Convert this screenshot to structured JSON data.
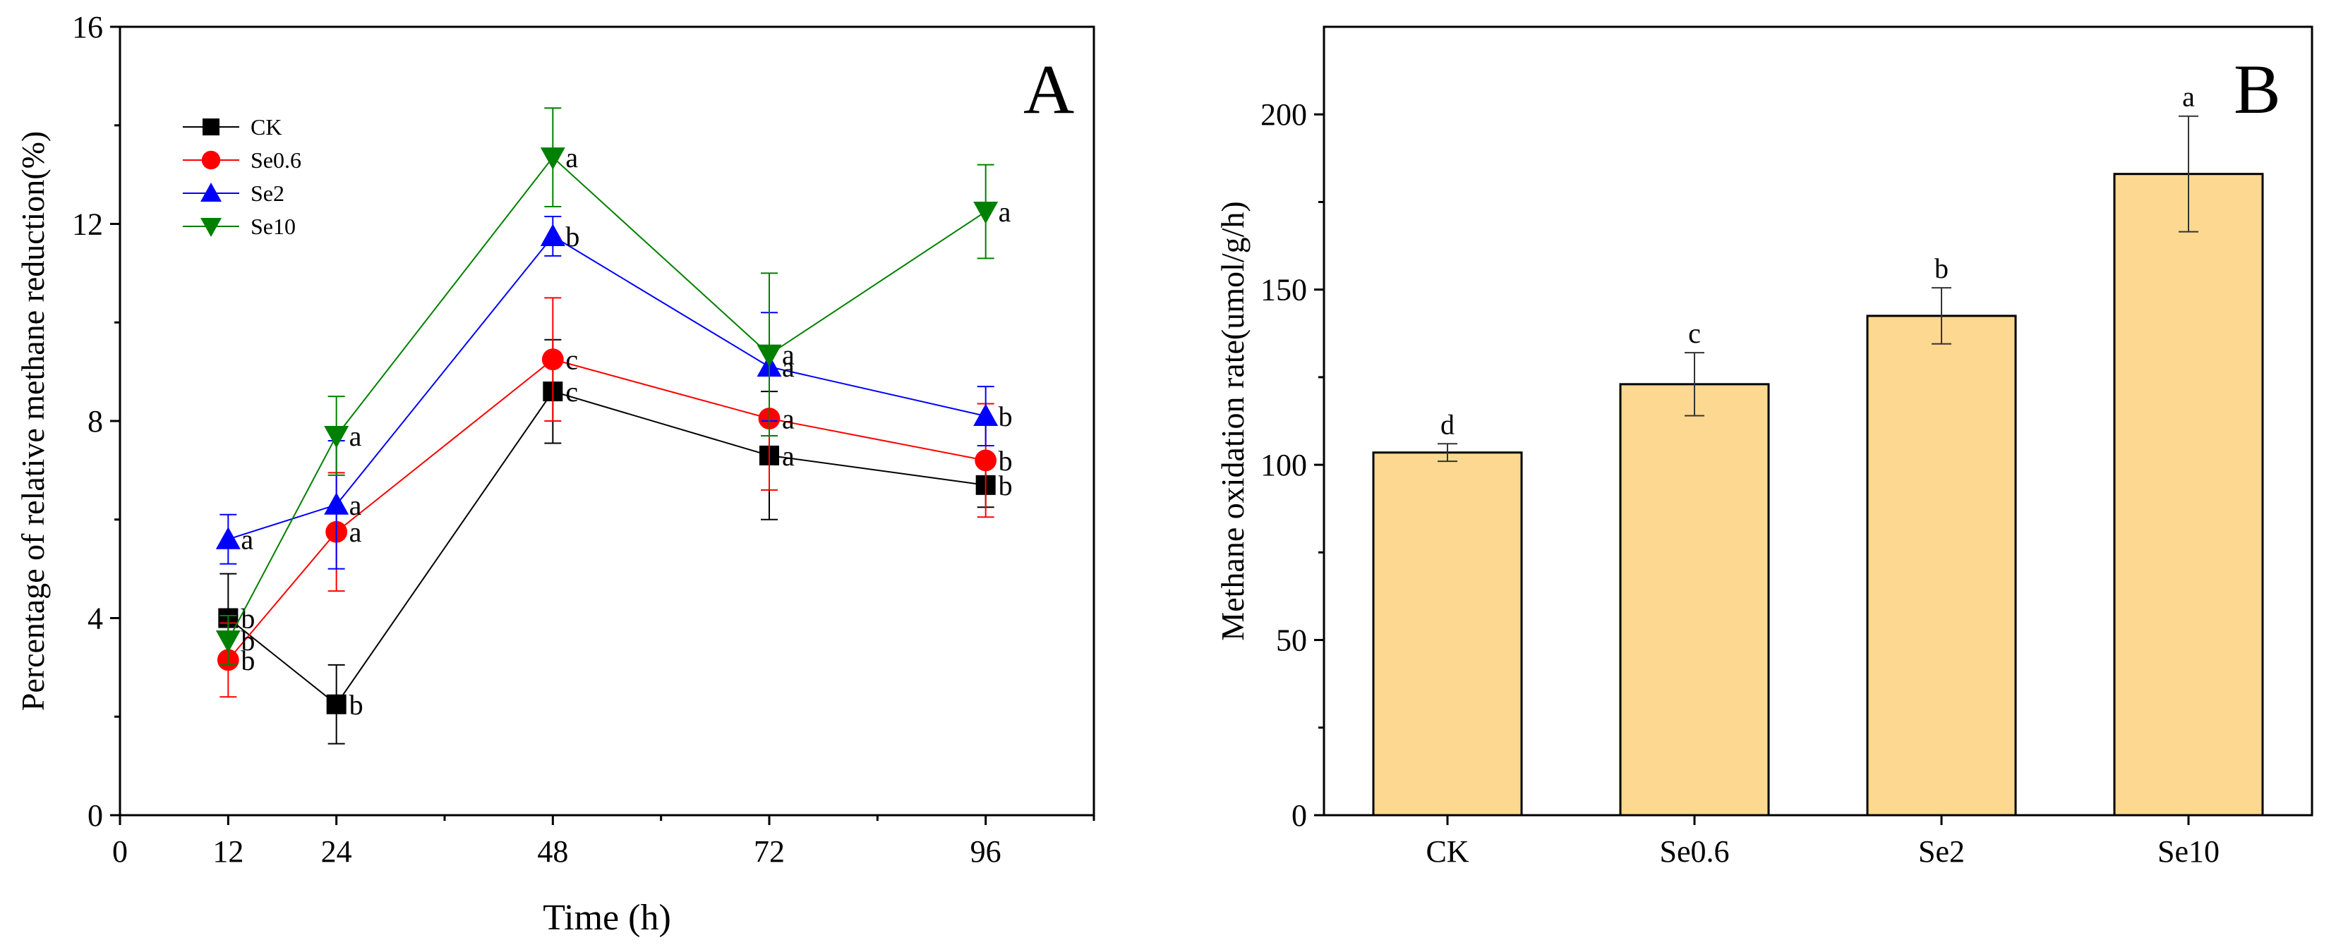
{
  "chart_data": [
    {
      "panel": "A",
      "type": "line",
      "panel_label": "A",
      "xlabel": "Time (h)",
      "ylabel": "Percentage of relative methane reduction(%)",
      "xlim": [
        0,
        108
      ],
      "ylim": [
        0,
        16
      ],
      "xticks": [
        0,
        12,
        24,
        48,
        72,
        96
      ],
      "yticks": [
        0,
        4,
        8,
        12,
        16
      ],
      "x": [
        12,
        24,
        48,
        72,
        96
      ],
      "legend_position": "top-left",
      "series": [
        {
          "name": "CK",
          "color": "#000000",
          "marker": "square",
          "values": [
            4.0,
            2.25,
            8.6,
            7.3,
            6.7
          ],
          "errors": [
            0.9,
            0.8,
            1.05,
            1.3,
            0.45
          ],
          "labels": [
            "b",
            "b",
            "c",
            "a",
            "b"
          ]
        },
        {
          "name": "Se0.6",
          "color": "#ff0000",
          "marker": "circle",
          "values": [
            3.15,
            5.75,
            9.25,
            8.05,
            7.2
          ],
          "errors": [
            0.75,
            1.2,
            1.25,
            1.45,
            1.15
          ],
          "labels": [
            "b",
            "a",
            "c",
            "a",
            "b"
          ]
        },
        {
          "name": "Se2",
          "color": "#0000ff",
          "marker": "triangle-up",
          "values": [
            5.6,
            6.3,
            11.75,
            9.1,
            8.1
          ],
          "errors": [
            0.5,
            1.3,
            0.4,
            1.1,
            0.6
          ],
          "labels": [
            "a",
            "a",
            "b",
            "a",
            "b"
          ]
        },
        {
          "name": "Se10",
          "color": "#008000",
          "marker": "triangle-down",
          "values": [
            3.55,
            7.7,
            13.35,
            9.35,
            12.25
          ],
          "errors": [
            0.5,
            0.8,
            1.0,
            1.65,
            0.95
          ],
          "labels": [
            "b",
            "a",
            "a",
            "a",
            "a"
          ]
        }
      ]
    },
    {
      "panel": "B",
      "type": "bar",
      "panel_label": "B",
      "xlabel": "",
      "ylabel": "Methane oxidation rate(umol/g/h)",
      "ylim": [
        0,
        225
      ],
      "yticks": [
        0,
        50,
        100,
        150,
        200
      ],
      "bar_color": "#fdd890",
      "categories": [
        "CK",
        "Se0.6",
        "Se2",
        "Se10"
      ],
      "values": [
        103.5,
        123,
        142.5,
        183
      ],
      "errors": [
        2.5,
        9,
        8,
        16.5
      ],
      "labels": [
        "d",
        "c",
        "b",
        "a"
      ]
    }
  ]
}
